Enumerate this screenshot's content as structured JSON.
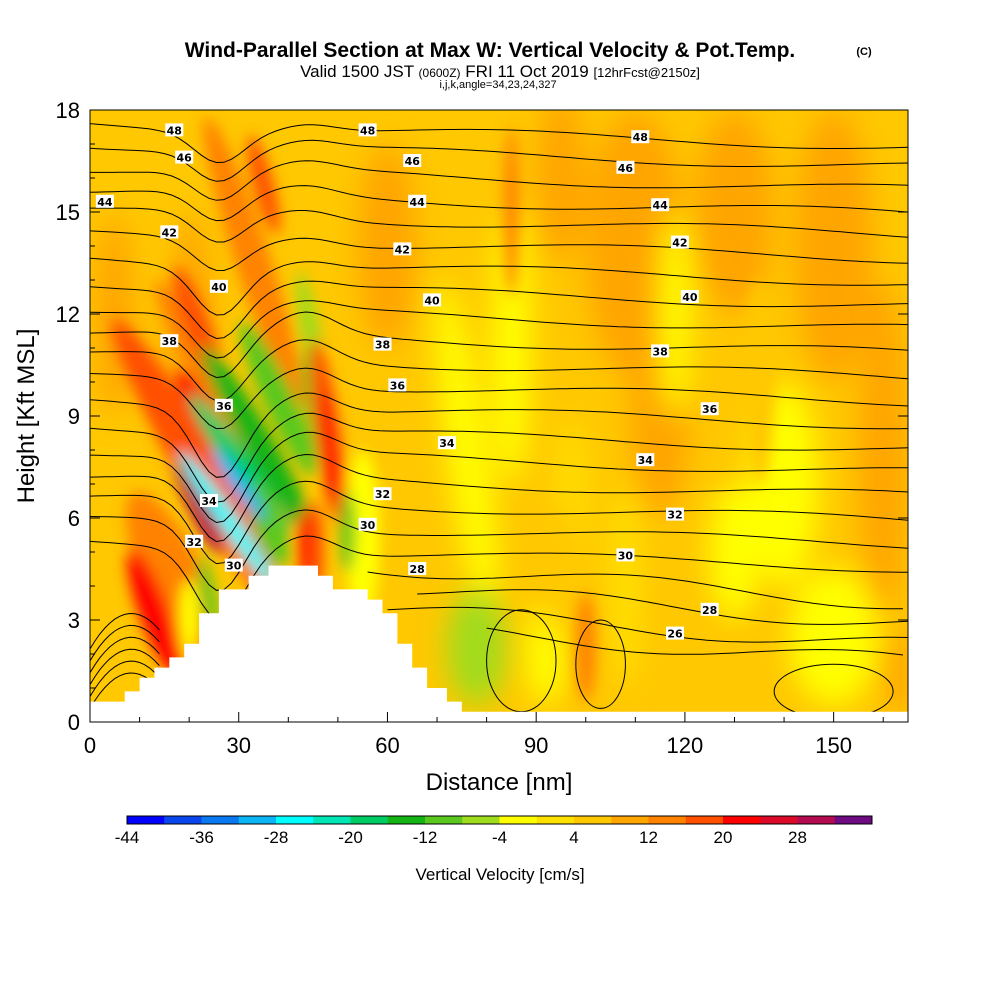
{
  "title": {
    "main": "Wind-Parallel Section at Max W: Vertical Velocity & Pot.Temp.",
    "copyright": "(C)",
    "valid_prefix": "Valid 1500 JST",
    "valid_zulu": "(0600Z)",
    "valid_date": "FRI 11 Oct 2019",
    "forecast": "[12hrFcst@2150z]",
    "indices": "i,j,k,angle=34,23,24,327"
  },
  "chart_data": {
    "type": "heatmap",
    "xlabel": "Distance [nm]",
    "ylabel": "Height [Kft MSL]",
    "xlim": [
      0,
      165
    ],
    "ylim": [
      0,
      18
    ],
    "x_ticks": [
      0,
      30,
      60,
      90,
      120,
      150
    ],
    "y_ticks": [
      0,
      3,
      6,
      9,
      12,
      15,
      18
    ],
    "colorbar": {
      "label": "Vertical Velocity [cm/s]",
      "levels": [
        -44,
        -40,
        -36,
        -32,
        -28,
        -24,
        -20,
        -16,
        -12,
        -8,
        -4,
        0,
        4,
        8,
        12,
        16,
        20,
        24,
        28,
        32
      ],
      "tick_labels": [
        "-44",
        "-36",
        "-28",
        "-20",
        "-12",
        "-4",
        "4",
        "12",
        "20",
        "28"
      ],
      "colors": [
        "#0000ff",
        "#0a46ee",
        "#0a78f0",
        "#0ab4f5",
        "#00ffff",
        "#00e6b4",
        "#00cc64",
        "#14b414",
        "#5ac81e",
        "#a0dc1e",
        "#ffff00",
        "#ffe100",
        "#ffc800",
        "#ffa500",
        "#ff8200",
        "#ff5000",
        "#ff0000",
        "#dc0a28",
        "#b40a50",
        "#6e0a82"
      ]
    },
    "theta_contours_C": [
      26,
      28,
      30,
      32,
      34,
      36,
      38,
      40,
      42,
      44,
      46,
      48
    ],
    "contour_labels": [
      {
        "v": "48",
        "x": 17,
        "y": 17.4
      },
      {
        "v": "48",
        "x": 56,
        "y": 17.4
      },
      {
        "v": "48",
        "x": 111,
        "y": 17.2
      },
      {
        "v": "46",
        "x": 19,
        "y": 16.6
      },
      {
        "v": "46",
        "x": 65,
        "y": 16.5
      },
      {
        "v": "46",
        "x": 108,
        "y": 16.3
      },
      {
        "v": "44",
        "x": 3,
        "y": 15.3
      },
      {
        "v": "44",
        "x": 66,
        "y": 15.3
      },
      {
        "v": "44",
        "x": 115,
        "y": 15.2
      },
      {
        "v": "42",
        "x": 16,
        "y": 14.4
      },
      {
        "v": "42",
        "x": 63,
        "y": 13.9
      },
      {
        "v": "42",
        "x": 119,
        "y": 14.1
      },
      {
        "v": "40",
        "x": 26,
        "y": 12.8
      },
      {
        "v": "40",
        "x": 69,
        "y": 12.4
      },
      {
        "v": "40",
        "x": 121,
        "y": 12.5
      },
      {
        "v": "38",
        "x": 16,
        "y": 11.2
      },
      {
        "v": "38",
        "x": 59,
        "y": 11.1
      },
      {
        "v": "38",
        "x": 115,
        "y": 10.9
      },
      {
        "v": "36",
        "x": 27,
        "y": 9.3
      },
      {
        "v": "36",
        "x": 62,
        "y": 9.9
      },
      {
        "v": "36",
        "x": 125,
        "y": 9.2
      },
      {
        "v": "34",
        "x": 24,
        "y": 6.5
      },
      {
        "v": "34",
        "x": 72,
        "y": 8.2
      },
      {
        "v": "34",
        "x": 112,
        "y": 7.7
      },
      {
        "v": "32",
        "x": 21,
        "y": 5.3
      },
      {
        "v": "32",
        "x": 59,
        "y": 6.7
      },
      {
        "v": "32",
        "x": 118,
        "y": 6.1
      },
      {
        "v": "30",
        "x": 29,
        "y": 4.6
      },
      {
        "v": "30",
        "x": 56,
        "y": 5.8
      },
      {
        "v": "30",
        "x": 108,
        "y": 4.9
      },
      {
        "v": "28",
        "x": 66,
        "y": 4.5
      },
      {
        "v": "28",
        "x": 125,
        "y": 3.3
      },
      {
        "v": "26",
        "x": 118,
        "y": 2.6
      }
    ],
    "terrain_nm_kft": [
      [
        0,
        0.6
      ],
      [
        7,
        0.6
      ],
      [
        7,
        0.9
      ],
      [
        10,
        0.9
      ],
      [
        10,
        1.3
      ],
      [
        13,
        1.3
      ],
      [
        13,
        1.6
      ],
      [
        16,
        1.6
      ],
      [
        16,
        1.9
      ],
      [
        19,
        1.9
      ],
      [
        19,
        2.3
      ],
      [
        22,
        2.3
      ],
      [
        22,
        3.2
      ],
      [
        26,
        3.2
      ],
      [
        26,
        3.9
      ],
      [
        32,
        3.9
      ],
      [
        32,
        4.3
      ],
      [
        36,
        4.3
      ],
      [
        36,
        4.6
      ],
      [
        46,
        4.6
      ],
      [
        46,
        4.3
      ],
      [
        49,
        4.3
      ],
      [
        49,
        3.9
      ],
      [
        56,
        3.9
      ],
      [
        56,
        3.6
      ],
      [
        59,
        3.6
      ],
      [
        59,
        3.2
      ],
      [
        62,
        3.2
      ],
      [
        62,
        2.3
      ],
      [
        65,
        2.3
      ],
      [
        65,
        1.6
      ],
      [
        68,
        1.6
      ],
      [
        68,
        1.0
      ],
      [
        72,
        1.0
      ],
      [
        72,
        0.6
      ],
      [
        75,
        0.6
      ],
      [
        75,
        0.3
      ],
      [
        165,
        0.3
      ]
    ]
  }
}
